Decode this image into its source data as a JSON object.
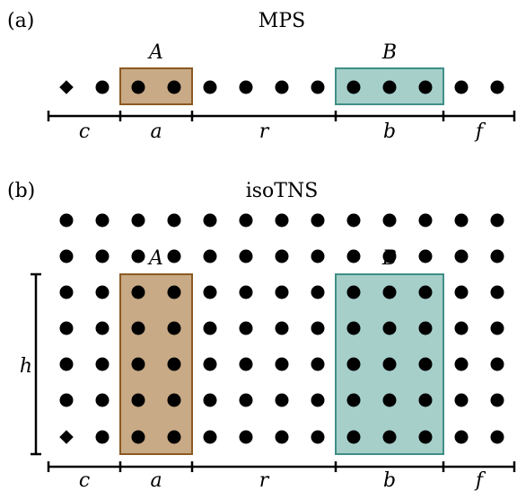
{
  "colors": {
    "region_a_fill": "#c9aa86",
    "region_a_stroke": "#8b5a22",
    "region_b_fill": "#a6cfca",
    "region_b_stroke": "#3f8f86",
    "site": "#000000"
  },
  "mps": {
    "panel_label": "(a)",
    "title": "MPS",
    "region_a_label": "A",
    "region_b_label": "B",
    "segments": [
      "c",
      "a",
      "r",
      "b",
      "f"
    ]
  },
  "isotns": {
    "panel_label": "(b)",
    "title": "isoTNS",
    "region_a_label": "A",
    "region_b_label": "B",
    "height_label": "h",
    "segments": [
      "c",
      "a",
      "r",
      "b",
      "f"
    ]
  }
}
